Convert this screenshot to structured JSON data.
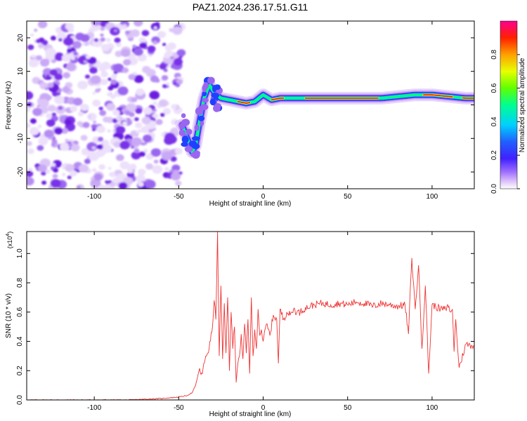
{
  "title": "PAZ1.2024.236.17.51.G11",
  "chart_data": [
    {
      "type": "heatmap",
      "name": "spectrogram",
      "xlabel": "Height of straight line (km)",
      "ylabel": "Frequency (Hz)",
      "xlim": [
        -140,
        125
      ],
      "ylim": [
        -25,
        25
      ],
      "xticks": [
        -100,
        -50,
        0,
        50,
        100
      ],
      "yticks": [
        -20,
        -10,
        0,
        10,
        20
      ],
      "description_trace": {
        "x": [
          -48,
          -45,
          -42,
          -40,
          -38,
          -35,
          -32,
          -28,
          -25,
          -20,
          -15,
          -10,
          -5,
          0,
          5,
          10,
          20,
          30,
          40,
          50,
          60,
          70,
          80,
          90,
          100,
          110,
          120,
          125
        ],
        "y": [
          -6,
          -10,
          -14,
          -12,
          -6,
          2,
          6,
          3,
          2,
          1.5,
          1,
          0.5,
          1,
          3,
          1.5,
          2,
          2,
          2,
          2,
          2,
          2,
          2,
          2.5,
          3,
          3,
          2.5,
          2,
          2
        ]
      },
      "colorbar": {
        "label": "Normalized spectral amplitude",
        "range": [
          0,
          1
        ],
        "ticks": [
          "0.0",
          "0.2",
          "0.4",
          "0.6",
          "0.8"
        ],
        "colors": [
          "#ffffff",
          "#d8b8f8",
          "#8040ff",
          "#4040ff",
          "#00c8ff",
          "#00ff80",
          "#80ff00",
          "#ffff00",
          "#ff8000",
          "#ff0000",
          "#ff0088"
        ]
      }
    },
    {
      "type": "line",
      "name": "snr",
      "xlabel": "Height of straight line (km)",
      "ylabel": "SNR (10 * v/v)",
      "scale_label": "(x10",
      "scale_exp": "4",
      "xlim": [
        -140,
        125
      ],
      "ylim": [
        0,
        1.15
      ],
      "xticks": [
        -100,
        -50,
        0,
        50,
        100
      ],
      "yticks": [
        "0.0",
        "0.2",
        "0.4",
        "0.6",
        "0.8",
        "1.0"
      ],
      "color": "#ee3333",
      "x": [
        -140,
        -120,
        -100,
        -80,
        -60,
        -50,
        -45,
        -42,
        -40,
        -38,
        -36,
        -34,
        -32,
        -30,
        -29,
        -28,
        -27,
        -26,
        -25,
        -24,
        -23,
        -22,
        -21,
        -20,
        -19,
        -18,
        -17,
        -16,
        -15,
        -14,
        -13,
        -12,
        -11,
        -10,
        -9,
        -8,
        -7,
        -6,
        -5,
        -4,
        -3,
        -2,
        -1,
        0,
        2,
        4,
        6,
        8,
        9,
        10,
        12,
        14,
        16,
        18,
        20,
        22,
        25,
        28,
        30,
        35,
        40,
        45,
        50,
        55,
        60,
        65,
        70,
        75,
        80,
        84,
        86,
        88,
        90,
        92,
        94,
        96,
        98,
        100,
        105,
        108,
        110,
        111,
        112,
        113,
        114,
        116,
        120,
        125
      ],
      "y": [
        0.0,
        0.0,
        0.0,
        0.0,
        0.01,
        0.02,
        0.03,
        0.05,
        0.1,
        0.2,
        0.18,
        0.3,
        0.35,
        0.5,
        0.68,
        0.55,
        1.15,
        0.3,
        0.78,
        0.28,
        0.66,
        0.32,
        0.7,
        0.2,
        0.6,
        0.35,
        0.5,
        0.12,
        0.25,
        0.3,
        0.45,
        0.28,
        0.52,
        0.32,
        0.55,
        0.18,
        0.7,
        0.3,
        0.48,
        0.35,
        0.62,
        0.44,
        0.48,
        0.4,
        0.52,
        0.44,
        0.58,
        0.55,
        0.25,
        0.62,
        0.55,
        0.6,
        0.58,
        0.62,
        0.6,
        0.6,
        0.63,
        0.64,
        0.65,
        0.66,
        0.65,
        0.66,
        0.65,
        0.67,
        0.66,
        0.64,
        0.66,
        0.65,
        0.64,
        0.65,
        0.45,
        0.97,
        0.62,
        0.92,
        0.35,
        0.78,
        0.18,
        0.65,
        0.62,
        0.62,
        0.64,
        0.6,
        0.62,
        0.33,
        0.55,
        0.22,
        0.38,
        0.37
      ]
    }
  ]
}
